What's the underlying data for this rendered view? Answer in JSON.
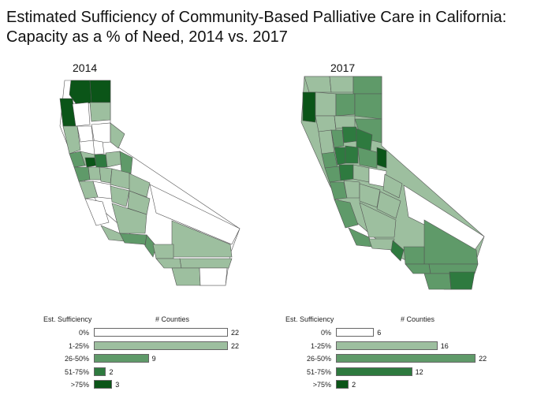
{
  "title_line1": "Estimated Sufficiency of Community-Based Palliative Care in California:",
  "title_line2": "Capacity as a % of Need, 2014 vs. 2017",
  "colors": {
    "0%": "#ffffff",
    "1-25%": "#9dbf9f",
    "26-50%": "#5f9a69",
    "51-75%": "#2e7a3f",
    ">75%": "#0b5518"
  },
  "chart_data": [
    {
      "type": "bar",
      "title": "2014",
      "xlabel": "# Counties",
      "ylabel": "Est. Sufficiency",
      "categories": [
        "0%",
        "1-25%",
        "26-50%",
        "51-75%",
        ">75%"
      ],
      "values": [
        22,
        22,
        9,
        2,
        3
      ]
    },
    {
      "type": "bar",
      "title": "2017",
      "xlabel": "# Counties",
      "ylabel": "Est. Sufficiency",
      "categories": [
        "0%",
        "1-25%",
        "26-50%",
        "51-75%",
        ">75%"
      ],
      "values": [
        6,
        16,
        22,
        12,
        2
      ]
    }
  ]
}
